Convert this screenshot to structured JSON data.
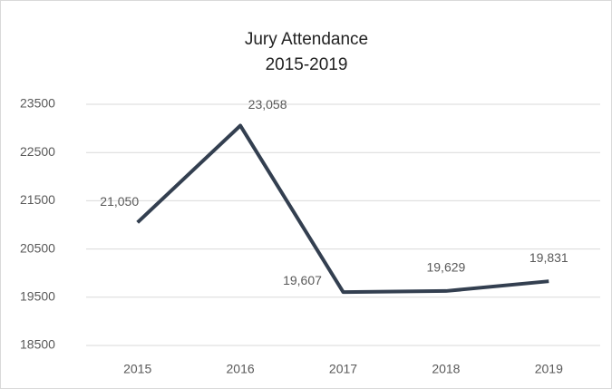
{
  "chart_data": {
    "type": "line",
    "title": "Jury Attendance",
    "subtitle": "2015-2019",
    "categories": [
      "2015",
      "2016",
      "2017",
      "2018",
      "2019"
    ],
    "values": [
      21050,
      23058,
      19607,
      19629,
      19831
    ],
    "value_labels": [
      "21,050",
      "23,058",
      "19,607",
      "19,629",
      "19,831"
    ],
    "color": "#333f50",
    "ylim": [
      18500,
      23500
    ],
    "yticks": [
      18500,
      19500,
      20500,
      21500,
      22500,
      23500
    ],
    "grid": true
  }
}
